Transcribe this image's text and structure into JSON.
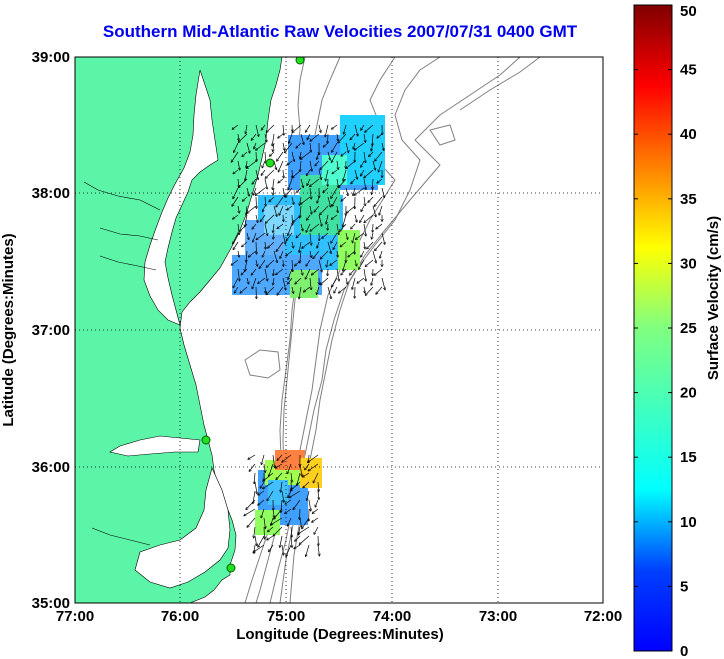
{
  "title": "Southern Mid-Atlantic Raw Velocities 2007/07/31 0400 GMT",
  "map": {
    "xlabel": "Longitude (Degrees:Minutes)",
    "ylabel": "Latitude (Degrees:Minutes)",
    "x_ticks": [
      "77:00",
      "76:00",
      "75:00",
      "74:00",
      "73:00",
      "72:00"
    ],
    "y_ticks": [
      "39:00",
      "38:00",
      "37:00",
      "36:00",
      "35:00"
    ],
    "lon_range": [
      -77,
      -72
    ],
    "lat_range": [
      35,
      39
    ],
    "land_color": "#5cf5a8",
    "grid": "dotted"
  },
  "colorbar": {
    "label": "Surface Velocity (cm/s)",
    "ticks": [
      "50",
      "45",
      "40",
      "35",
      "30",
      "25",
      "20",
      "15",
      "10",
      "5",
      "0"
    ],
    "range": [
      0,
      50
    ],
    "colormap": "jet"
  }
}
